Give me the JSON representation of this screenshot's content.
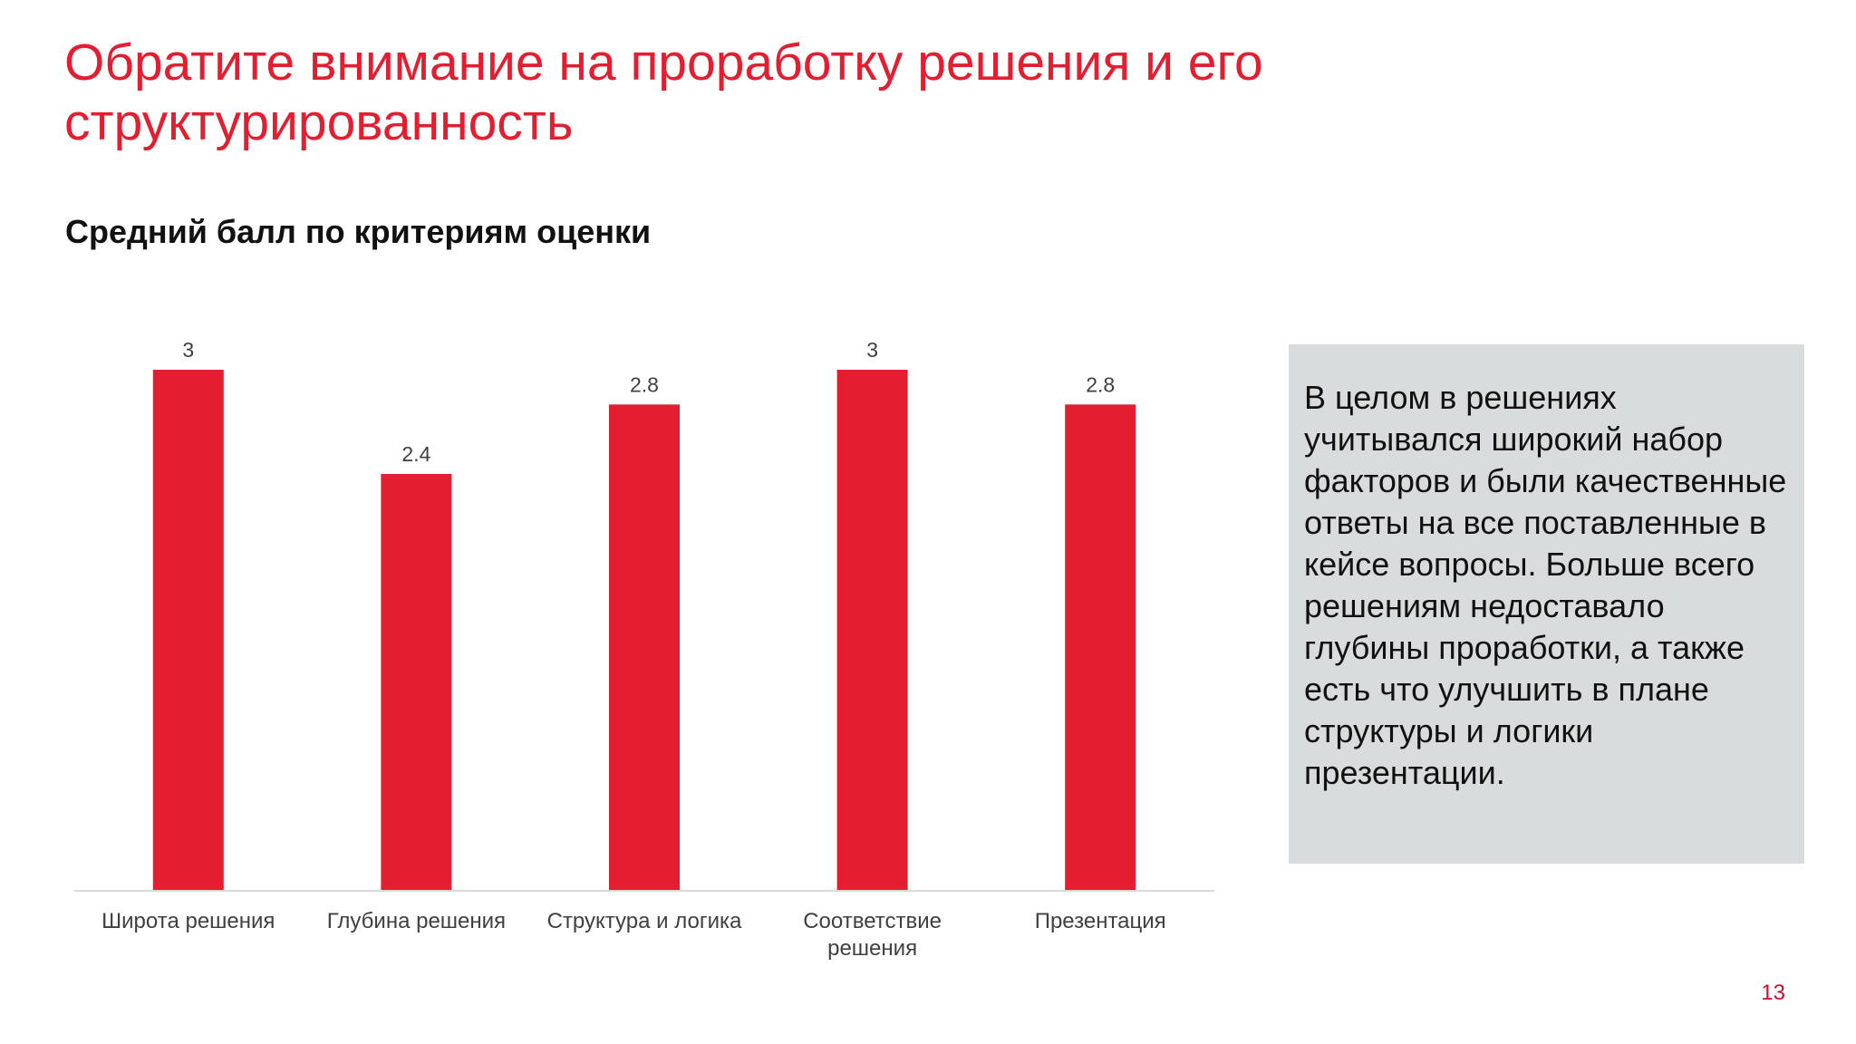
{
  "slide": {
    "title": "Обратите внимание на проработку решения и его структурированность",
    "page_number": "13"
  },
  "callout": {
    "text": "В целом в решениях учитывался широкий набор факторов и были качественные ответы на все поставленные в кейсе вопросы. Больше всего решениям недоставало глубины проработки, а также есть что улучшить в плане структуры и логики презентации."
  },
  "chart_data": {
    "type": "bar",
    "title": "Средний балл по критериям оценки",
    "categories": [
      [
        "Широта решения"
      ],
      [
        "Глубина решения"
      ],
      [
        "Структура и логика"
      ],
      [
        "Соответствие",
        "решения"
      ],
      [
        "Презентация"
      ]
    ],
    "values": [
      3,
      2.4,
      2.8,
      3,
      2.8
    ],
    "value_labels": [
      "3",
      "2.4",
      "2.8",
      "3",
      "2.8"
    ],
    "ylim": [
      0,
      3
    ],
    "grid": false,
    "legend": "none",
    "colors": {
      "bar": "#e31e30",
      "axis": "#d9d9d9",
      "label": "#404040"
    }
  }
}
